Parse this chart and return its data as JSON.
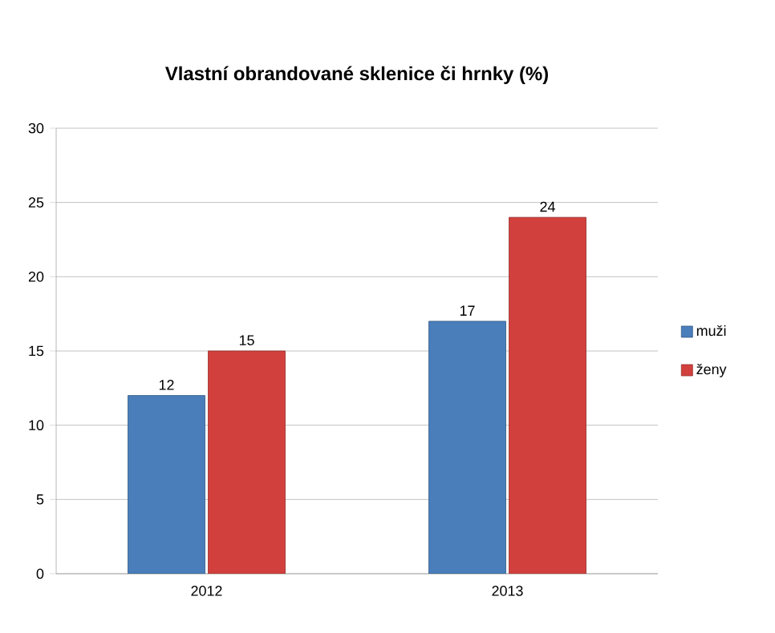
{
  "chart_data": {
    "type": "bar",
    "title": "Vlastní obrandované  sklenice či hrnky (%)",
    "categories": [
      "2012",
      "2013"
    ],
    "series": [
      {
        "name": "muži",
        "color": "#4a7ebb",
        "values": [
          12,
          17
        ]
      },
      {
        "name": "ženy",
        "color": "#d2403d",
        "values": [
          15,
          24
        ]
      }
    ],
    "ylim": [
      0,
      30
    ],
    "yticks": [
      0,
      5,
      10,
      15,
      20,
      25,
      30
    ],
    "grid": "y",
    "legend": "right",
    "data_labels": true
  }
}
